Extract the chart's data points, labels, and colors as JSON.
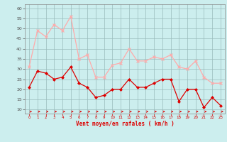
{
  "hours": [
    0,
    1,
    2,
    3,
    4,
    5,
    6,
    7,
    8,
    9,
    10,
    11,
    12,
    13,
    14,
    15,
    16,
    17,
    18,
    19,
    20,
    21,
    22,
    23
  ],
  "wind_mean": [
    21,
    29,
    28,
    25,
    26,
    31,
    23,
    21,
    16,
    17,
    20,
    20,
    25,
    21,
    21,
    23,
    25,
    25,
    14,
    20,
    20,
    11,
    16,
    12
  ],
  "wind_gust": [
    31,
    49,
    46,
    52,
    49,
    56,
    35,
    37,
    26,
    26,
    32,
    33,
    40,
    34,
    34,
    36,
    35,
    37,
    31,
    30,
    34,
    26,
    23,
    23
  ],
  "color_mean": "#dd0000",
  "color_gust": "#ffaaaa",
  "background_color": "#cceeee",
  "grid_color": "#99bbbb",
  "xlabel": "Vent moyen/en rafales ( km/h )",
  "xlabel_color": "#dd0000",
  "ylim": [
    8,
    62
  ],
  "yticks": [
    10,
    15,
    20,
    25,
    30,
    35,
    40,
    45,
    50,
    55,
    60
  ],
  "arrow_color": "#dd0000",
  "marker_mean": "D",
  "marker_gust": "x"
}
